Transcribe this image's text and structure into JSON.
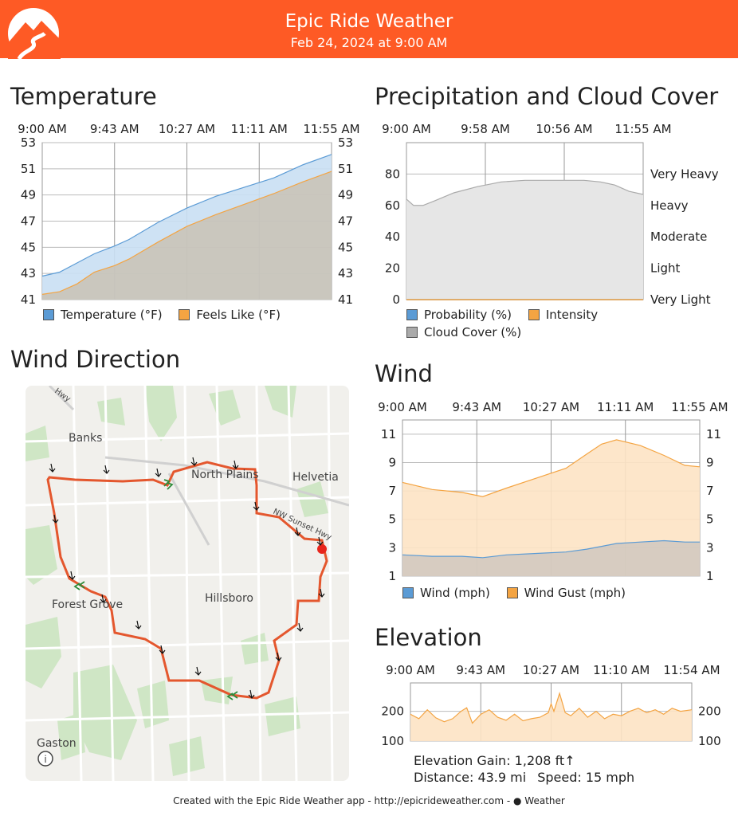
{
  "header": {
    "title": "Epic Ride Weather",
    "subtitle": "Feb 24, 2024 at 9:00 AM",
    "color": "#fe5a25",
    "logo_icon": "mountain-road-logo"
  },
  "temperature": {
    "section_title": "Temperature",
    "legend": [
      {
        "label": "Temperature (°F)",
        "color": "#5b9bd5"
      },
      {
        "label": "Feels Like (°F)",
        "color": "#f4a442"
      }
    ]
  },
  "precip": {
    "section_title": "Precipitation and Cloud Cover",
    "legend": [
      {
        "label": "Probability (%)",
        "color": "#5b9bd5"
      },
      {
        "label": "Intensity",
        "color": "#f4a442"
      },
      {
        "label": "Cloud Cover (%)",
        "color": "#aaaaaa"
      }
    ]
  },
  "wind": {
    "section_title": "Wind",
    "legend": [
      {
        "label": "Wind (mph)",
        "color": "#5b9bd5"
      },
      {
        "label": "Wind Gust (mph)",
        "color": "#f4a442"
      }
    ]
  },
  "wind_direction": {
    "section_title": "Wind Direction",
    "map_labels": {
      "banks": "Banks",
      "north_plains": "North Plains",
      "helvetia": "Helvetia",
      "sunset_hwy": "NW Sunset Hwy",
      "forest_grove": "Forest Grove",
      "hillsboro": "Hillsboro",
      "gaston": "Gaston",
      "hwy": "Hwy"
    },
    "route_color": "#e4572e",
    "info_icon": "info-icon"
  },
  "elevation": {
    "section_title": "Elevation",
    "gain": "Elevation Gain: 1,208 ft↑",
    "distance": "Distance: 43.9 mi",
    "speed": "Speed: 15 mph"
  },
  "footer": {
    "text": "Created with the Epic Ride Weather app - http://epicrideweather.com - ",
    "weather_brand": " Weather"
  },
  "chart_data": [
    {
      "type": "area",
      "id": "temperature",
      "title": "Temperature",
      "x_ticks": [
        "9:00 AM",
        "9:43 AM",
        "10:27 AM",
        "11:11 AM",
        "11:55 AM"
      ],
      "y_ticks": [
        41,
        43,
        45,
        47,
        49,
        51,
        53
      ],
      "ylim": [
        41,
        53
      ],
      "grid": true,
      "legend_position": "bottom",
      "x": [
        0,
        0.06,
        0.12,
        0.18,
        0.25,
        0.3,
        0.4,
        0.5,
        0.6,
        0.7,
        0.8,
        0.9,
        1.0
      ],
      "series": [
        {
          "name": "Temperature (°F)",
          "color": "#5b9bd5",
          "values": [
            42.8,
            43.1,
            43.8,
            44.5,
            45.1,
            45.6,
            46.9,
            48.0,
            48.9,
            49.6,
            50.3,
            51.3,
            52.1
          ]
        },
        {
          "name": "Feels Like (°F)",
          "color": "#f4a442",
          "values": [
            41.4,
            41.6,
            42.2,
            43.1,
            43.6,
            44.1,
            45.4,
            46.6,
            47.5,
            48.3,
            49.1,
            50.0,
            50.8
          ]
        }
      ]
    },
    {
      "type": "area",
      "id": "precipitation",
      "title": "Precipitation and Cloud Cover",
      "x_ticks": [
        "9:00 AM",
        "9:58 AM",
        "10:56 AM",
        "11:55 AM"
      ],
      "y_ticks": [
        0,
        20,
        40,
        60,
        80
      ],
      "y_right_labels": [
        "Very Light",
        "Light",
        "Moderate",
        "Heavy",
        "Very Heavy"
      ],
      "ylim": [
        0,
        100
      ],
      "grid": true,
      "legend_position": "bottom",
      "x": [
        0,
        0.03,
        0.07,
        0.12,
        0.2,
        0.3,
        0.4,
        0.5,
        0.6,
        0.68,
        0.75,
        0.82,
        0.88,
        0.94,
        1.0
      ],
      "series": [
        {
          "name": "Probability (%)",
          "color": "#5b9bd5",
          "values": [
            0,
            0,
            0,
            0,
            0,
            0,
            0,
            0,
            0,
            0,
            0,
            0,
            0,
            0,
            0
          ]
        },
        {
          "name": "Intensity",
          "color": "#f4a442",
          "values": [
            0,
            0,
            0,
            0,
            0,
            0,
            0,
            0,
            0,
            0,
            0,
            0,
            0,
            0,
            0
          ]
        },
        {
          "name": "Cloud Cover (%)",
          "color": "#aaaaaa",
          "values": [
            64,
            60,
            60,
            63,
            68,
            72,
            75,
            76,
            76,
            76,
            76,
            75,
            73,
            69,
            67
          ]
        }
      ]
    },
    {
      "type": "area",
      "id": "wind",
      "title": "Wind",
      "x_ticks": [
        "9:00 AM",
        "9:43 AM",
        "10:27 AM",
        "11:11 AM",
        "11:55 AM"
      ],
      "y_ticks": [
        1,
        3,
        5,
        7,
        9,
        11
      ],
      "ylim": [
        1,
        12
      ],
      "grid": true,
      "legend_position": "bottom",
      "x": [
        0,
        0.1,
        0.2,
        0.27,
        0.35,
        0.45,
        0.55,
        0.62,
        0.67,
        0.72,
        0.8,
        0.88,
        0.95,
        1.0
      ],
      "series": [
        {
          "name": "Wind (mph)",
          "color": "#5b9bd5",
          "values": [
            2.5,
            2.4,
            2.4,
            2.3,
            2.5,
            2.6,
            2.7,
            2.9,
            3.1,
            3.3,
            3.4,
            3.5,
            3.4,
            3.4
          ]
        },
        {
          "name": "Wind Gust (mph)",
          "color": "#f4a442",
          "values": [
            7.6,
            7.1,
            6.9,
            6.6,
            7.2,
            7.9,
            8.6,
            9.6,
            10.3,
            10.6,
            10.2,
            9.5,
            8.8,
            8.7
          ]
        }
      ]
    },
    {
      "type": "area",
      "id": "elevation",
      "title": "Elevation",
      "x_ticks": [
        "9:00 AM",
        "9:43 AM",
        "10:27 AM",
        "11:10 AM",
        "11:54 AM"
      ],
      "y_ticks": [
        100,
        200
      ],
      "ylim": [
        100,
        295
      ],
      "grid": true,
      "x": [
        0,
        0.03,
        0.06,
        0.09,
        0.12,
        0.15,
        0.18,
        0.2,
        0.22,
        0.25,
        0.28,
        0.31,
        0.34,
        0.37,
        0.4,
        0.43,
        0.46,
        0.49,
        0.5,
        0.51,
        0.53,
        0.55,
        0.57,
        0.6,
        0.63,
        0.66,
        0.69,
        0.72,
        0.75,
        0.78,
        0.81,
        0.84,
        0.87,
        0.9,
        0.93,
        0.96,
        1.0
      ],
      "series": [
        {
          "name": "Elevation",
          "color": "#f4a442",
          "values": [
            190,
            175,
            205,
            178,
            165,
            175,
            200,
            212,
            160,
            190,
            205,
            180,
            170,
            190,
            168,
            175,
            180,
            195,
            225,
            200,
            260,
            195,
            185,
            210,
            180,
            200,
            175,
            190,
            185,
            200,
            210,
            195,
            205,
            190,
            210,
            200,
            205
          ]
        }
      ]
    }
  ]
}
